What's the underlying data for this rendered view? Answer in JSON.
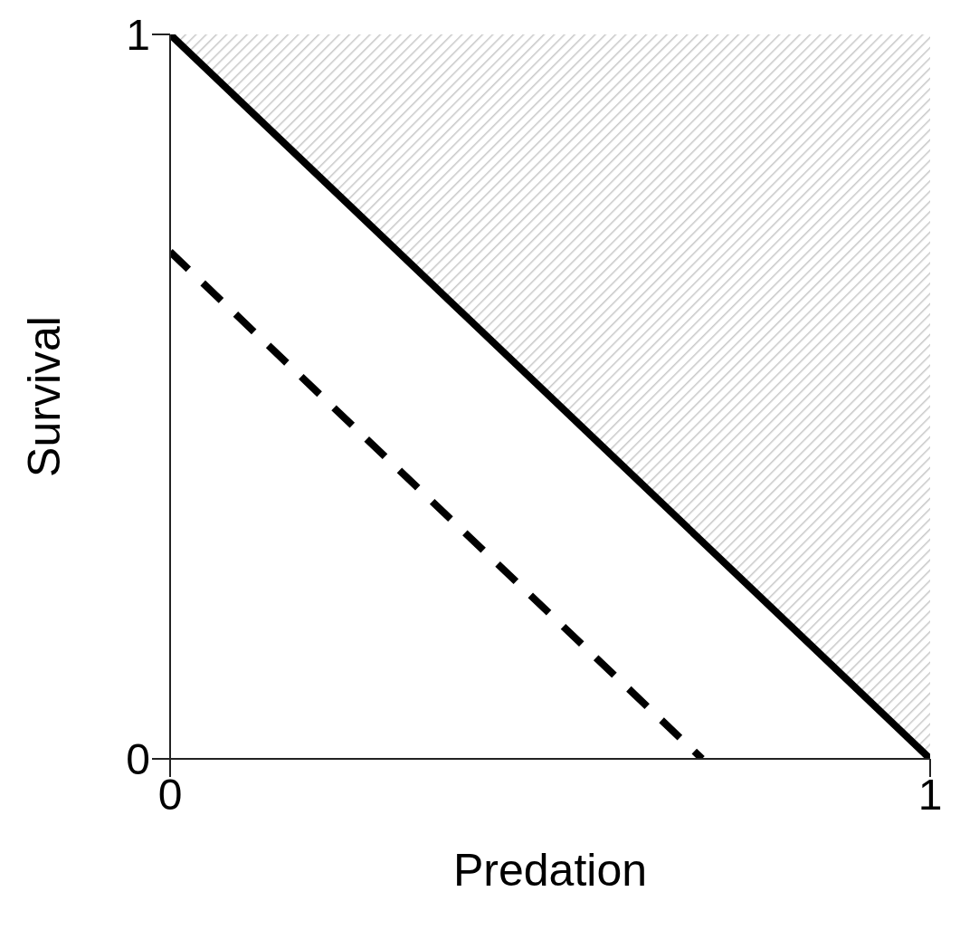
{
  "chart_data": {
    "type": "line",
    "xlabel": "Predation",
    "ylabel": "Survival",
    "xlim": [
      0,
      1
    ],
    "ylim": [
      0,
      1
    ],
    "xticks": [
      0,
      1
    ],
    "yticks": [
      0,
      1
    ],
    "marker": "none",
    "series": [
      {
        "x": [
          0,
          1
        ],
        "values": [
          1,
          0
        ],
        "color": "#000000",
        "line_style": "solid",
        "lower": [
          1,
          0
        ],
        "upper": [
          1,
          1
        ]
      },
      {
        "x": [
          0,
          0.7
        ],
        "values": [
          0.7,
          0
        ],
        "color": "#000000",
        "line_style": "dashed"
      }
    ]
  }
}
